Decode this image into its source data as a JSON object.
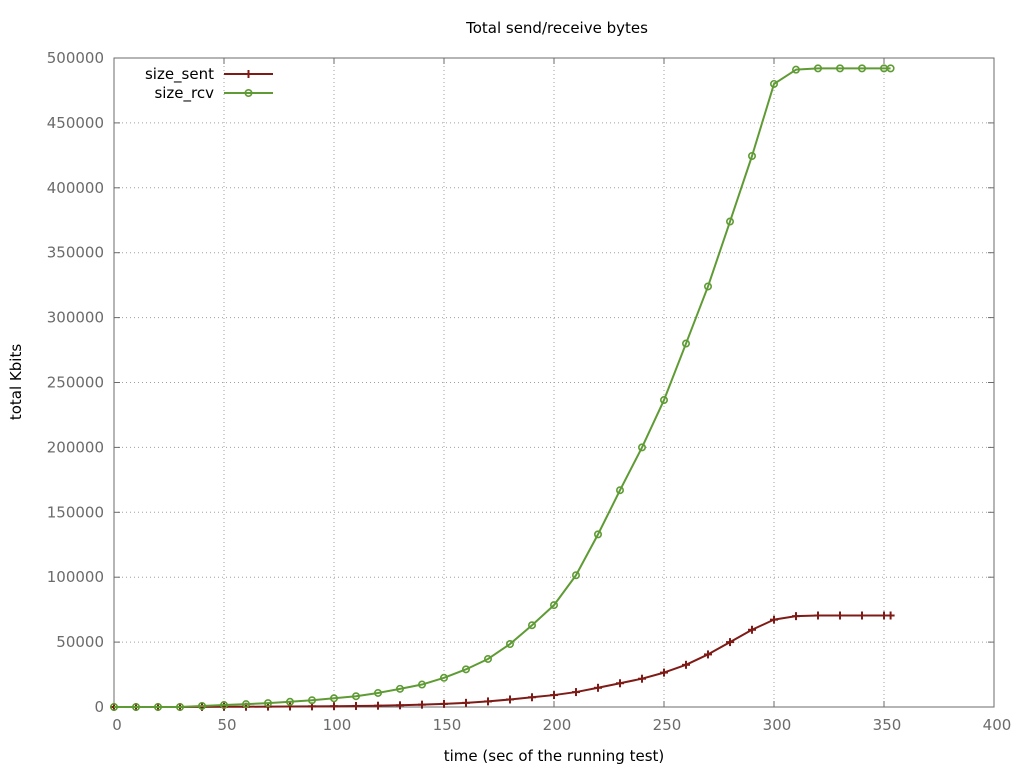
{
  "chart_data": {
    "type": "line",
    "title": "Total send/receive bytes",
    "xlabel": "time (sec of the running test)",
    "ylabel": "total Kbits",
    "xlim": [
      0,
      400
    ],
    "ylim": [
      0,
      500000
    ],
    "xticks": [
      0,
      50,
      100,
      150,
      200,
      250,
      300,
      350,
      400
    ],
    "yticks": [
      0,
      50000,
      100000,
      150000,
      200000,
      250000,
      300000,
      350000,
      400000,
      450000,
      500000
    ],
    "grid": true,
    "legend_position": "top-left",
    "series": [
      {
        "name": "size_sent",
        "color": "#7f1b16",
        "marker": "plus",
        "x": [
          0,
          10,
          20,
          30,
          40,
          50,
          60,
          70,
          80,
          90,
          100,
          110,
          120,
          130,
          140,
          150,
          160,
          170,
          180,
          190,
          200,
          210,
          220,
          230,
          240,
          250,
          260,
          270,
          280,
          290,
          300,
          310,
          320,
          330,
          340,
          350,
          353
        ],
        "y": [
          0,
          0,
          0,
          0,
          100,
          150,
          200,
          300,
          400,
          500,
          600,
          800,
          1000,
          1300,
          1800,
          2400,
          3200,
          4300,
          5800,
          7500,
          9200,
          11500,
          14800,
          18300,
          21800,
          26500,
          32500,
          40500,
          50000,
          59500,
          67300,
          70000,
          70500,
          70500,
          70500,
          70500,
          70500
        ]
      },
      {
        "name": "size_rcv",
        "color": "#5f9b34",
        "marker": "circle",
        "x": [
          0,
          10,
          20,
          30,
          40,
          50,
          60,
          70,
          80,
          90,
          100,
          110,
          120,
          130,
          140,
          150,
          160,
          170,
          180,
          190,
          200,
          210,
          220,
          230,
          240,
          250,
          260,
          270,
          280,
          290,
          300,
          310,
          320,
          330,
          340,
          350,
          353
        ],
        "y": [
          0,
          0,
          0,
          0,
          800,
          1500,
          2200,
          3000,
          4000,
          5200,
          6700,
          8300,
          10800,
          14000,
          17300,
          22500,
          29000,
          37000,
          48500,
          63000,
          78500,
          101500,
          133000,
          167000,
          200000,
          236500,
          280000,
          324000,
          374000,
          424500,
          480000,
          491000,
          492000,
          492000,
          492000,
          492000,
          492000
        ]
      }
    ]
  }
}
